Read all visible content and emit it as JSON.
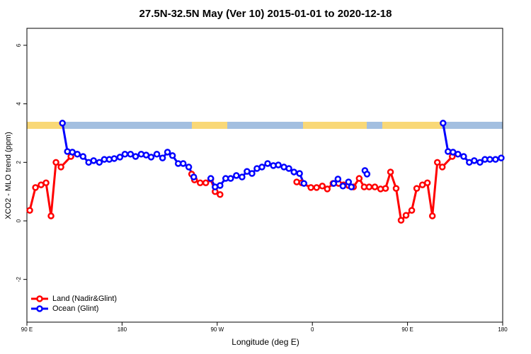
{
  "chart_data": {
    "type": "line",
    "title": "27.5N-32.5N May (Ver 10)   2015-01-01 to 2020-12-18",
    "x_label": "Longitude (deg E)",
    "y_label": "XCO2 - MLO trend (ppm)",
    "xlim": [
      90,
      540
    ],
    "ylim": [
      -3.46,
      6.58
    ],
    "xticks": [
      {
        "value": 90,
        "label": "90 E"
      },
      180,
      {
        "value": 270,
        "label": "90 W"
      },
      {
        "value": 360,
        "label": "0"
      },
      {
        "value": 450,
        "label": "90 E"
      },
      {
        "value": 540,
        "label": "180"
      }
    ],
    "yticks": [
      -2,
      0,
      2,
      4,
      6
    ],
    "legend": "bottom-left",
    "series": [
      {
        "name": "Land (Nadir&Glint)",
        "color": "#ff0000",
        "x": [
          92.7,
          98.1,
          103.4,
          108.1,
          112.8,
          117.5,
          122.2,
          131.6,
          null,
          245.8,
          248.5,
          253.9,
          259.2,
          263.9,
          268,
          272.7,
          null,
          345.2,
          349.9,
          358.6,
          364,
          369.4,
          374.1,
          379.5,
          384.8,
          389.5,
          394.2,
          398.9,
          404.3,
          409,
          413.7,
          419.1,
          424.5,
          429.2,
          433.9,
          439.2,
          443.9,
          448.6,
          454,
          458.7,
          464.1,
          468.8,
          473.5,
          478.2,
          482.9,
          492.3
        ],
        "values": [
          0.36,
          1.14,
          1.23,
          1.3,
          0.17,
          2.0,
          1.84,
          2.2,
          null,
          1.6,
          1.4,
          1.3,
          1.3,
          1.43,
          1.0,
          0.9,
          null,
          1.33,
          1.3,
          1.14,
          1.14,
          1.19,
          1.09,
          1.28,
          1.28,
          1.23,
          1.21,
          1.16,
          1.45,
          1.16,
          1.16,
          1.16,
          1.09,
          1.11,
          1.67,
          1.11,
          0.02,
          0.19,
          0.36,
          1.11,
          1.23,
          1.3,
          0.17,
          2.0,
          1.84,
          2.2
        ]
      },
      {
        "name": "Ocean (Glint)",
        "color": "#0000ff",
        "x": [
          123.6,
          128.3,
          133,
          137.7,
          143.1,
          148.4,
          153.1,
          158.5,
          163.2,
          167.9,
          172.6,
          178,
          182.7,
          188,
          192.8,
          198.1,
          202.8,
          207.5,
          212.9,
          218.3,
          223,
          227.7,
          233.1,
          237.8,
          243.1,
          247.8,
          null,
          263.9,
          268,
          272.7,
          278,
          282.7,
          288.1,
          293.5,
          298.2,
          302.9,
          307.6,
          312.3,
          317.7,
          323.1,
          327.8,
          333.1,
          337.8,
          342.6,
          347.9,
          352,
          null,
          380.2,
          384.2,
          388.9,
          394.2,
          396.9,
          null,
          409.7,
          411.7,
          null,
          483.6,
          488.3,
          493,
          497.7,
          503.1,
          508.4,
          513.1,
          518.5,
          523.2,
          527.9,
          533.2,
          538.6
        ],
        "values": [
          3.34,
          2.37,
          2.35,
          2.28,
          2.2,
          2.0,
          2.06,
          2.0,
          2.1,
          2.1,
          2.13,
          2.18,
          2.28,
          2.28,
          2.2,
          2.28,
          2.25,
          2.18,
          2.28,
          2.15,
          2.35,
          2.23,
          1.96,
          1.96,
          1.84,
          1.5,
          null,
          1.45,
          1.16,
          1.21,
          1.45,
          1.45,
          1.55,
          1.5,
          1.69,
          1.62,
          1.79,
          1.84,
          1.96,
          1.89,
          1.91,
          1.84,
          1.79,
          1.67,
          1.62,
          1.28,
          null,
          1.28,
          1.43,
          1.19,
          1.33,
          1.16,
          null,
          1.72,
          1.6,
          null,
          3.34,
          2.37,
          2.35,
          2.28,
          2.2,
          2.0,
          2.06,
          2.0,
          2.1,
          2.1,
          2.1,
          2.15
        ]
      }
    ]
  }
}
